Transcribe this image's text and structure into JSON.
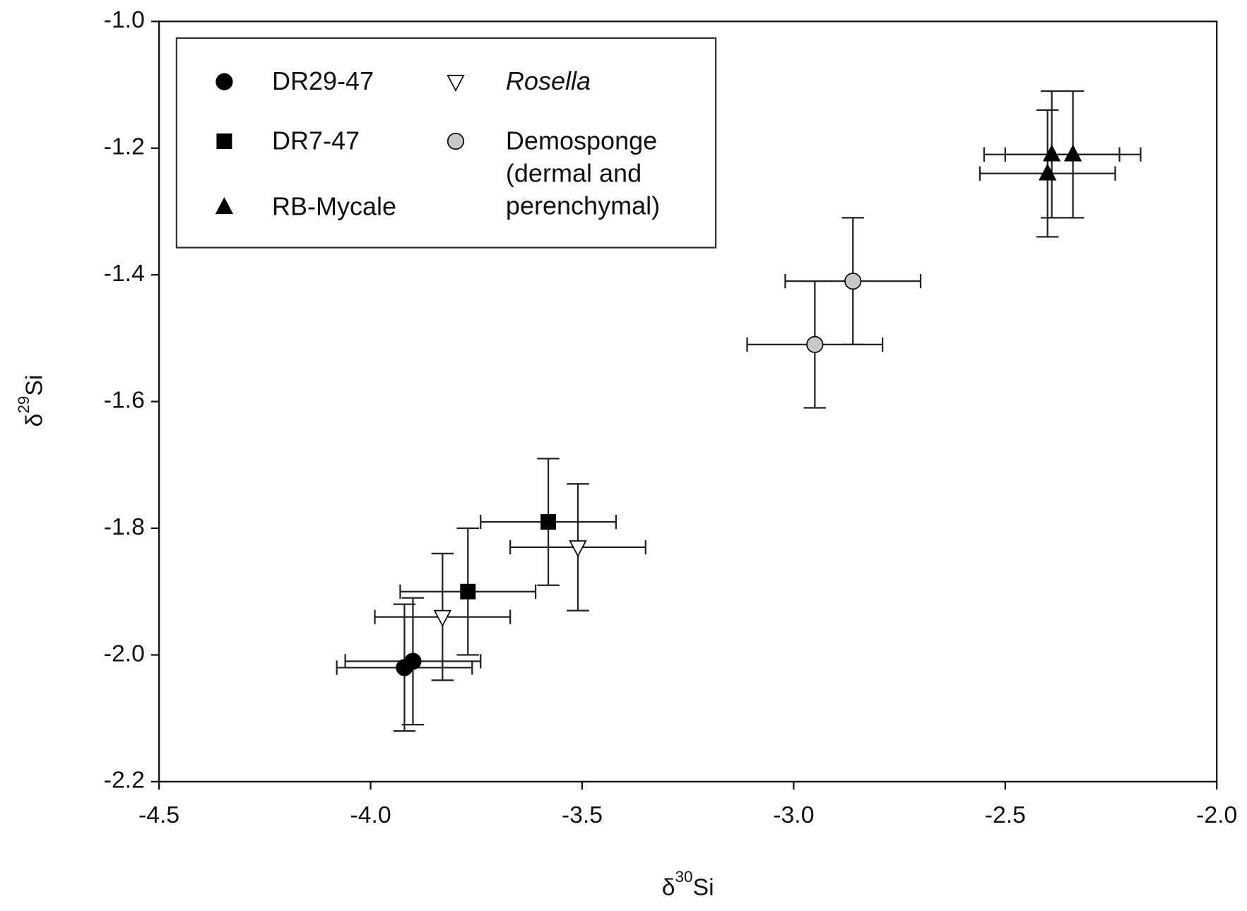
{
  "chart_data": {
    "type": "scatter",
    "xlabel": [
      "δ",
      "30",
      "Si"
    ],
    "ylabel": [
      "δ",
      "29",
      "Si"
    ],
    "xlim": [
      -4.5,
      -2.0
    ],
    "xticks": [
      -4.5,
      {
        "value": -4.0,
        "label": "-4.0"
      },
      -3.5,
      {
        "value": -3.0,
        "label": "-3.0"
      },
      -2.5,
      {
        "value": -2.0,
        "label": "-2.0"
      }
    ],
    "ylim": [
      -2.2,
      -1.0
    ],
    "yticks": [
      -2.2,
      {
        "value": -2.0,
        "label": "-2.0"
      },
      -1.8,
      -1.6,
      -1.4,
      -1.2,
      {
        "value": -1.0,
        "label": "-1.0"
      }
    ],
    "series": [
      {
        "name": "DR29-47",
        "marker": "circle",
        "color": "#000000",
        "x": [
          -3.92,
          -3.9
        ],
        "values": [
          -2.02,
          -2.01
        ],
        "xerr": [
          0.16,
          0.16
        ],
        "yerr": [
          0.1,
          0.1
        ]
      },
      {
        "name": "DR7-47",
        "marker": "square",
        "color": "#000000",
        "x": [
          -3.77,
          -3.58
        ],
        "values": [
          -1.9,
          -1.79
        ],
        "xerr": [
          0.16,
          0.16
        ],
        "yerr": [
          0.1,
          0.1
        ]
      },
      {
        "name": "RB-Mycale",
        "marker": "triangle",
        "color": "#000000",
        "x": [
          -2.4,
          -2.39,
          -2.34
        ],
        "values": [
          -1.24,
          -1.21,
          -1.21
        ],
        "xerr": [
          0.16,
          0.16,
          0.16
        ],
        "yerr": [
          0.1,
          0.1,
          0.1
        ]
      },
      {
        "name": "Rosella",
        "marker": "triangle-down",
        "color": "#ffffff",
        "italic": true,
        "x": [
          -3.83,
          -3.51
        ],
        "values": [
          -1.94,
          -1.83
        ],
        "xerr": [
          0.16,
          0.16
        ],
        "yerr": [
          0.1,
          0.1
        ]
      },
      {
        "name": "Demosponge (dermal and perenchymal)",
        "marker": "circle",
        "color": "#c8c8c8",
        "x": [
          -2.95,
          -2.86
        ],
        "values": [
          -1.51,
          -1.41
        ],
        "xerr": [
          0.16,
          0.16
        ],
        "yerr": [
          0.1,
          0.1
        ]
      }
    ]
  }
}
